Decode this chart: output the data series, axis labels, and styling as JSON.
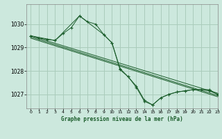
{
  "title": "Graphe pression niveau de la mer (hPa)",
  "bg_color": "#cce8dd",
  "grid_color": "#aaccbb",
  "line_color": "#1a5c2a",
  "xlim": [
    -0.5,
    23
  ],
  "ylim": [
    1026.4,
    1030.85
  ],
  "yticks": [
    1027,
    1028,
    1029,
    1030
  ],
  "xticks": [
    0,
    1,
    2,
    3,
    4,
    5,
    6,
    7,
    8,
    9,
    10,
    11,
    12,
    13,
    14,
    15,
    16,
    17,
    18,
    19,
    20,
    21,
    22,
    23
  ],
  "series": [
    {
      "x": [
        0,
        1,
        2,
        3,
        4,
        5,
        6,
        7,
        8,
        9,
        10,
        11,
        12,
        13,
        14,
        15,
        16,
        17,
        18,
        19,
        20,
        21,
        22,
        23
      ],
      "y": [
        1029.5,
        1029.4,
        1029.35,
        1029.3,
        1029.6,
        1029.85,
        1030.35,
        1030.1,
        1030.0,
        1029.55,
        1029.2,
        1028.1,
        1027.75,
        1027.35,
        1026.75,
        1026.55,
        1026.85,
        1027.0,
        1027.1,
        1027.15,
        1027.2,
        1027.2,
        1027.2,
        1027.0
      ],
      "has_markers": true
    },
    {
      "x": [
        0,
        23
      ],
      "y": [
        1029.5,
        1027.05
      ],
      "has_markers": false
    },
    {
      "x": [
        0,
        23
      ],
      "y": [
        1029.45,
        1026.95
      ],
      "has_markers": false
    },
    {
      "x": [
        0,
        23
      ],
      "y": [
        1029.4,
        1026.9
      ],
      "has_markers": false
    },
    {
      "x": [
        0,
        3,
        6,
        9,
        10,
        11,
        12,
        13,
        14,
        15,
        16,
        17,
        18,
        19,
        20,
        21,
        22,
        23
      ],
      "y": [
        1029.5,
        1029.3,
        1030.35,
        1029.55,
        1029.2,
        1028.05,
        1027.75,
        1027.3,
        1026.7,
        1026.55,
        1026.85,
        1027.0,
        1027.1,
        1027.15,
        1027.2,
        1027.2,
        1027.15,
        1027.0
      ],
      "has_markers": true
    }
  ]
}
